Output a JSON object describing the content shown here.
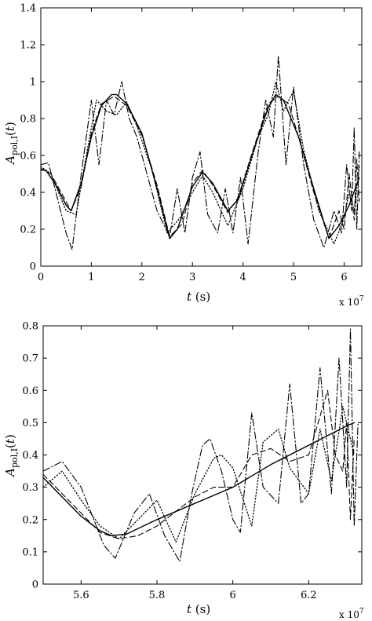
{
  "chart_data": [
    {
      "type": "line",
      "xlabel": "t (s)",
      "ylabel": "A_pol,I(t)",
      "x_multiplier_label": "x 10",
      "x_multiplier_exp": "7",
      "xlim": [
        0,
        6.35
      ],
      "ylim": [
        0,
        1.4
      ],
      "xticks": [
        0,
        1,
        2,
        3,
        4,
        5,
        6
      ],
      "xtick_labels": [
        "0",
        "1",
        "2",
        "3",
        "4",
        "5",
        "6"
      ],
      "yticks": [
        0,
        0.2,
        0.4,
        0.6,
        0.8,
        1,
        1.2,
        1.4
      ],
      "ytick_labels": [
        "0",
        "0.2",
        "0.4",
        "0.6",
        "0.8",
        "1",
        "1.2",
        "1.4"
      ],
      "grid": false,
      "series": [
        {
          "style": "solid",
          "x": [
            0,
            0.1,
            0.3,
            0.5,
            0.6,
            0.8,
            1.0,
            1.2,
            1.4,
            1.5,
            1.7,
            2.0,
            2.3,
            2.55,
            2.7,
            3.0,
            3.2,
            3.4,
            3.7,
            3.9,
            4.2,
            4.5,
            4.65,
            4.8,
            5.1,
            5.4,
            5.7,
            5.9,
            6.1,
            6.3
          ],
          "y": [
            0.52,
            0.52,
            0.44,
            0.33,
            0.3,
            0.45,
            0.7,
            0.87,
            0.93,
            0.93,
            0.88,
            0.72,
            0.42,
            0.15,
            0.2,
            0.43,
            0.51,
            0.45,
            0.3,
            0.36,
            0.62,
            0.86,
            0.93,
            0.9,
            0.7,
            0.42,
            0.15,
            0.22,
            0.33,
            0.48
          ]
        },
        {
          "style": "dashed",
          "x": [
            0,
            0.2,
            0.4,
            0.6,
            0.8,
            1.0,
            1.2,
            1.45,
            1.7,
            2.0,
            2.3,
            2.55,
            2.8,
            3.0,
            3.2,
            3.4,
            3.7,
            3.9,
            4.2,
            4.5,
            4.7,
            4.9,
            5.1,
            5.4,
            5.7,
            5.9,
            6.0,
            6.1,
            6.2,
            6.25,
            6.3
          ],
          "y": [
            0.53,
            0.5,
            0.4,
            0.3,
            0.43,
            0.72,
            0.88,
            0.92,
            0.87,
            0.71,
            0.44,
            0.16,
            0.23,
            0.45,
            0.52,
            0.44,
            0.29,
            0.37,
            0.63,
            0.88,
            0.92,
            0.88,
            0.7,
            0.4,
            0.15,
            0.3,
            0.2,
            0.5,
            0.25,
            0.58,
            0.35
          ]
        },
        {
          "style": "dotted",
          "x": [
            0,
            0.2,
            0.5,
            0.7,
            0.9,
            1.1,
            1.3,
            1.5,
            1.7,
            1.9,
            2.2,
            2.5,
            2.75,
            3.0,
            3.2,
            3.4,
            3.7,
            4.0,
            4.3,
            4.5,
            4.65,
            4.8,
            5.0,
            5.2,
            5.5,
            5.8,
            6.0,
            6.1,
            6.2,
            6.3
          ],
          "y": [
            0.54,
            0.5,
            0.3,
            0.28,
            0.6,
            0.9,
            0.84,
            0.82,
            0.89,
            0.76,
            0.52,
            0.18,
            0.26,
            0.4,
            0.49,
            0.4,
            0.22,
            0.42,
            0.7,
            0.82,
            1.0,
            0.84,
            0.95,
            0.63,
            0.3,
            0.12,
            0.26,
            0.4,
            0.3,
            0.54
          ]
        },
        {
          "style": "dashdot",
          "x": [
            0,
            0.15,
            0.3,
            0.5,
            0.62,
            0.8,
            1.0,
            1.15,
            1.3,
            1.45,
            1.6,
            1.75,
            1.9,
            2.1,
            2.3,
            2.55,
            2.7,
            2.85,
            3.0,
            3.15,
            3.3,
            3.5,
            3.65,
            3.8,
            3.95,
            4.1,
            4.3,
            4.45,
            4.6,
            4.7,
            4.85,
            5.0,
            5.2,
            5.4,
            5.6,
            5.8,
            5.95,
            6.05,
            6.15,
            6.2,
            6.25,
            6.3
          ],
          "y": [
            0.55,
            0.56,
            0.4,
            0.18,
            0.09,
            0.5,
            0.9,
            0.55,
            0.9,
            0.82,
            1.0,
            0.8,
            0.7,
            0.5,
            0.3,
            0.16,
            0.42,
            0.18,
            0.48,
            0.62,
            0.28,
            0.18,
            0.42,
            0.18,
            0.48,
            0.12,
            0.62,
            0.9,
            0.7,
            1.14,
            0.55,
            0.97,
            0.55,
            0.25,
            0.1,
            0.3,
            0.18,
            0.55,
            0.3,
            0.75,
            0.2,
            0.62
          ]
        }
      ]
    },
    {
      "type": "line",
      "xlabel": "t (s)",
      "ylabel": "A_pol,I(t)",
      "x_multiplier_label": "x 10",
      "x_multiplier_exp": "7",
      "xlim": [
        5.5,
        6.34
      ],
      "ylim": [
        0,
        0.8
      ],
      "xticks": [
        5.6,
        5.8,
        6.0,
        6.2
      ],
      "xtick_labels": [
        "5.6",
        "5.8",
        "6",
        "6.2"
      ],
      "yticks": [
        0,
        0.1,
        0.2,
        0.3,
        0.4,
        0.5,
        0.6,
        0.7,
        0.8
      ],
      "ytick_labels": [
        "0",
        "0.1",
        "0.2",
        "0.3",
        "0.4",
        "0.5",
        "0.6",
        "0.7",
        "0.8"
      ],
      "grid": false,
      "series": [
        {
          "style": "solid",
          "x": [
            5.5,
            5.55,
            5.6,
            5.65,
            5.68,
            5.72,
            5.8,
            5.9,
            6.0,
            6.1,
            6.2,
            6.3,
            6.32
          ],
          "y": [
            0.33,
            0.27,
            0.21,
            0.165,
            0.15,
            0.155,
            0.2,
            0.25,
            0.3,
            0.37,
            0.43,
            0.49,
            0.5
          ]
        },
        {
          "style": "dashed",
          "x": [
            5.5,
            5.55,
            5.6,
            5.65,
            5.7,
            5.75,
            5.8,
            5.9,
            5.95,
            6.0,
            6.05,
            6.1,
            6.15,
            6.2,
            6.25,
            6.27,
            6.29,
            6.3,
            6.31,
            6.32
          ],
          "y": [
            0.34,
            0.28,
            0.22,
            0.16,
            0.14,
            0.15,
            0.18,
            0.27,
            0.3,
            0.3,
            0.4,
            0.42,
            0.38,
            0.4,
            0.6,
            0.4,
            0.35,
            0.5,
            0.2,
            0.45
          ]
        },
        {
          "style": "dotted",
          "x": [
            5.5,
            5.55,
            5.6,
            5.65,
            5.7,
            5.75,
            5.8,
            5.85,
            5.9,
            5.95,
            5.97,
            6.0,
            6.05,
            6.08,
            6.12,
            6.15,
            6.2,
            6.23,
            6.26,
            6.29,
            6.32
          ],
          "y": [
            0.3,
            0.35,
            0.26,
            0.18,
            0.14,
            0.2,
            0.26,
            0.13,
            0.28,
            0.39,
            0.4,
            0.36,
            0.18,
            0.44,
            0.48,
            0.36,
            0.28,
            0.48,
            0.32,
            0.55,
            0.4
          ]
        },
        {
          "style": "dashdot",
          "x": [
            5.5,
            5.55,
            5.6,
            5.66,
            5.69,
            5.74,
            5.78,
            5.82,
            5.86,
            5.89,
            5.92,
            5.94,
            5.97,
            6.0,
            6.02,
            6.05,
            6.08,
            6.12,
            6.15,
            6.18,
            6.2,
            6.23,
            6.26,
            6.28,
            6.3,
            6.31,
            6.32,
            6.33
          ],
          "y": [
            0.35,
            0.38,
            0.3,
            0.12,
            0.08,
            0.22,
            0.28,
            0.15,
            0.07,
            0.27,
            0.43,
            0.45,
            0.35,
            0.2,
            0.16,
            0.53,
            0.3,
            0.25,
            0.62,
            0.25,
            0.28,
            0.67,
            0.28,
            0.7,
            0.3,
            0.79,
            0.18,
            0.5
          ]
        }
      ]
    }
  ]
}
